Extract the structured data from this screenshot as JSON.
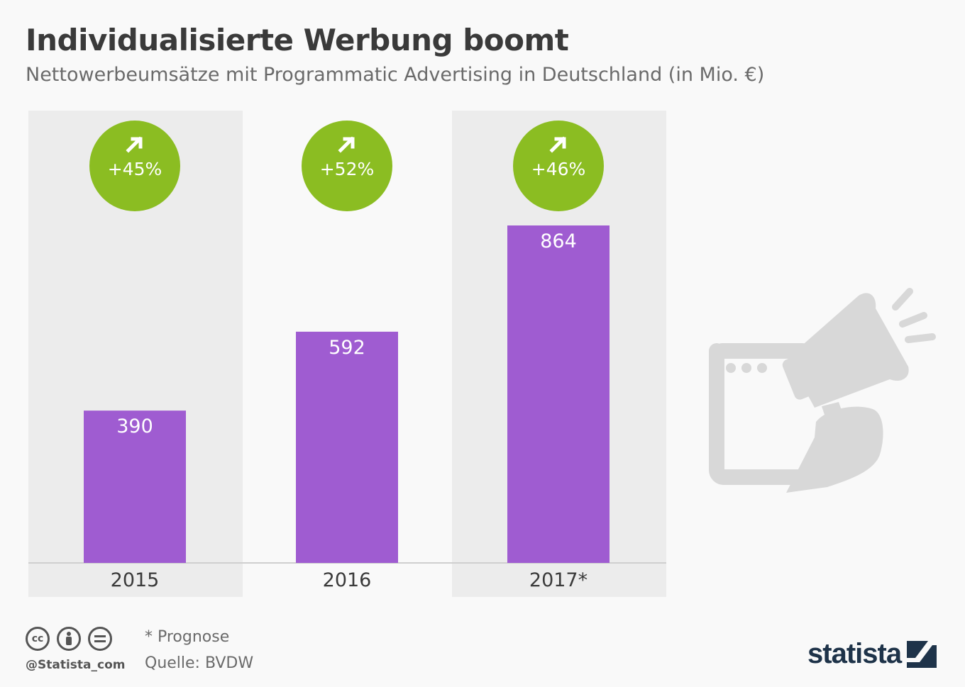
{
  "title": "Individualisierte Werbung boomt",
  "subtitle": "Nettowerbeumsätze mit Programmatic Advertising in Deutschland (in Mio. €)",
  "chart_data": {
    "type": "bar",
    "categories": [
      "2015",
      "2016",
      "2017*"
    ],
    "values": [
      390,
      592,
      864
    ],
    "value_labels": [
      "390",
      "592",
      "864"
    ],
    "growth_labels": [
      "+45%",
      "+52%",
      "+46%"
    ],
    "title": "Individualisierte Werbung boomt",
    "subtitle": "Nettowerbeumsätze mit Programmatic Advertising in Deutschland (in Mio. €)",
    "xlabel": "",
    "ylabel": "",
    "ylim": [
      0,
      1000
    ],
    "grid": false,
    "legend": "none",
    "colors": {
      "bar": "#9f5cd1",
      "badge": "#8bbd22",
      "panel": "#ececec",
      "baseline": "#cfcfcf"
    }
  },
  "footer": {
    "handle": "@Statista_com",
    "note": "* Prognose",
    "source": "Quelle: BVDW",
    "brand": "statista",
    "license_icons": [
      "cc-icon",
      "by-icon",
      "nd-icon"
    ]
  },
  "illustration": {
    "icon": "megaphone-browser-icon",
    "color": "#d8d8d8"
  }
}
